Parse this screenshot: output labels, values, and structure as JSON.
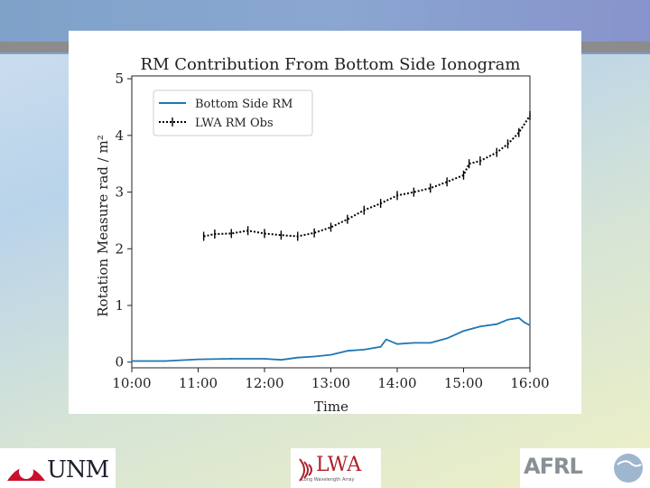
{
  "chart_data": {
    "type": "line",
    "title": "RM Contribution From Bottom Side Ionogram",
    "xlabel": "Time",
    "ylabel": "Rotation Measure rad / m²",
    "x_ticks": [
      "10:00",
      "11:00",
      "12:00",
      "13:00",
      "14:00",
      "15:00",
      "16:00"
    ],
    "xlim": [
      "10:00",
      "16:00"
    ],
    "y_ticks": [
      "0",
      "1",
      "2",
      "3",
      "4",
      "5"
    ],
    "ylim": [
      -0.1,
      5.05
    ],
    "grid": false,
    "legend_position": "top-left",
    "series": [
      {
        "name": "Bottom Side RM",
        "color": "#1f77b4",
        "style": "solid",
        "points": [
          [
            "10:00",
            0.02
          ],
          [
            "10:30",
            0.02
          ],
          [
            "11:00",
            0.05
          ],
          [
            "11:30",
            0.06
          ],
          [
            "12:00",
            0.06
          ],
          [
            "12:15",
            0.04
          ],
          [
            "12:30",
            0.08
          ],
          [
            "12:45",
            0.1
          ],
          [
            "13:00",
            0.13
          ],
          [
            "13:15",
            0.2
          ],
          [
            "13:30",
            0.22
          ],
          [
            "13:45",
            0.27
          ],
          [
            "13:50",
            0.4
          ],
          [
            "14:00",
            0.32
          ],
          [
            "14:15",
            0.34
          ],
          [
            "14:30",
            0.34
          ],
          [
            "14:45",
            0.42
          ],
          [
            "15:00",
            0.55
          ],
          [
            "15:15",
            0.63
          ],
          [
            "15:30",
            0.67
          ],
          [
            "15:40",
            0.75
          ],
          [
            "15:50",
            0.78
          ],
          [
            "15:55",
            0.7
          ],
          [
            "16:00",
            0.65
          ]
        ]
      },
      {
        "name": "LWA RM Obs",
        "color": "#000000",
        "style": "dotted-with-errorbars",
        "points": [
          [
            "11:05",
            2.22
          ],
          [
            "11:15",
            2.26
          ],
          [
            "11:30",
            2.27
          ],
          [
            "11:45",
            2.32
          ],
          [
            "12:00",
            2.27
          ],
          [
            "12:15",
            2.24
          ],
          [
            "12:30",
            2.22
          ],
          [
            "12:45",
            2.28
          ],
          [
            "13:00",
            2.38
          ],
          [
            "13:15",
            2.52
          ],
          [
            "13:30",
            2.68
          ],
          [
            "13:45",
            2.8
          ],
          [
            "14:00",
            2.94
          ],
          [
            "14:15",
            3.0
          ],
          [
            "14:30",
            3.07
          ],
          [
            "14:45",
            3.18
          ],
          [
            "15:00",
            3.3
          ],
          [
            "15:05",
            3.5
          ],
          [
            "15:15",
            3.55
          ],
          [
            "15:30",
            3.7
          ],
          [
            "15:40",
            3.85
          ],
          [
            "15:50",
            4.05
          ],
          [
            "16:00",
            4.35
          ]
        ]
      }
    ]
  },
  "logos": {
    "unm": "UNM",
    "lwa": "LWA",
    "lwa_sub": "Long Wavelength Array",
    "afrl": "AFRL"
  }
}
